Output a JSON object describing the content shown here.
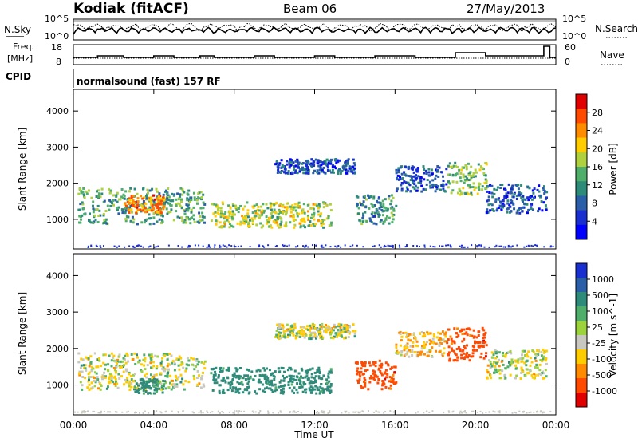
{
  "header": {
    "station": "Kodiak (fitACF)",
    "beam": "Beam 06",
    "date": "27/May/2013"
  },
  "top_panels": {
    "nsky_label": "N.Sky",
    "nsky_ticks": [
      "10^5",
      "10^0"
    ],
    "nsearch_label": "N.Search",
    "nsearch_ticks": [
      "10^5",
      "10^0"
    ],
    "freq_label_1": "Freq.",
    "freq_label_2": "[MHz]",
    "freq_ticks": [
      "18",
      "8"
    ],
    "nave_label": "Nave",
    "nave_ticks": [
      "60",
      "0"
    ],
    "cpid_label": "CPID",
    "cpid_text": "normalsound (fast) 157 RF"
  },
  "chart_data": [
    {
      "type": "heatmap",
      "name": "power",
      "ylabel": "Slant Range [km]",
      "xlabel": "Time UT",
      "xlim": [
        0,
        24
      ],
      "ylim": [
        180,
        4600
      ],
      "y_ticks": [
        "1000",
        "2000",
        "3000",
        "4000"
      ],
      "colorbar": {
        "label": "Power [dB]",
        "ticks": [
          "28",
          "24",
          "20",
          "16",
          "12",
          "8",
          "4"
        ],
        "colors": [
          "#e00000",
          "#ff4a00",
          "#ff8c00",
          "#ffcc00",
          "#b0d040",
          "#4fae6a",
          "#2e8b7a",
          "#2a5fa8",
          "#1a2fcf",
          "#0000ff"
        ]
      },
      "bands": [
        {
          "t0": 0.2,
          "t1": 6.5,
          "r0": 900,
          "r1": 1900,
          "level": 14
        },
        {
          "t0": 2.5,
          "t1": 4.5,
          "r0": 1200,
          "r1": 1700,
          "level": 24
        },
        {
          "t0": 6.8,
          "t1": 12.8,
          "r0": 800,
          "r1": 1500,
          "level": 18
        },
        {
          "t0": 10.0,
          "t1": 14.0,
          "r0": 2300,
          "r1": 2700,
          "level": 8
        },
        {
          "t0": 14.0,
          "t1": 16.0,
          "r0": 900,
          "r1": 1700,
          "level": 12
        },
        {
          "t0": 16.0,
          "t1": 18.5,
          "r0": 1800,
          "r1": 2500,
          "level": 8
        },
        {
          "t0": 18.5,
          "t1": 20.5,
          "r0": 1700,
          "r1": 2600,
          "level": 16
        },
        {
          "t0": 20.5,
          "t1": 23.5,
          "r0": 1200,
          "r1": 2000,
          "level": 8
        }
      ]
    },
    {
      "type": "heatmap",
      "name": "velocity",
      "ylabel": "Slant Range [km]",
      "xlabel": "Time UT",
      "xlim": [
        0,
        24
      ],
      "ylim": [
        180,
        4600
      ],
      "y_ticks": [
        "1000",
        "2000",
        "3000",
        "4000"
      ],
      "x_ticks": [
        "00:00",
        "04:00",
        "08:00",
        "12:00",
        "16:00",
        "20:00",
        "00:00"
      ],
      "colorbar": {
        "label": "Velocity [m s^-1]",
        "ticks": [
          "1000",
          "500",
          "100",
          "25",
          "-25",
          "-100",
          "-500",
          "-1000"
        ],
        "colors": [
          "#1a2fcf",
          "#2a5fa8",
          "#2e8b7a",
          "#4fae6a",
          "#9cd23c",
          "#c8c8c0",
          "#ffcc00",
          "#ff8c00",
          "#ff4a00",
          "#e00000"
        ]
      },
      "bands": [
        {
          "t0": 0.2,
          "t1": 6.5,
          "r0": 900,
          "r1": 1900,
          "vel": 0
        },
        {
          "t0": 3.0,
          "t1": 4.5,
          "r0": 800,
          "r1": 1200,
          "vel": 150
        },
        {
          "t0": 6.8,
          "t1": 12.8,
          "r0": 800,
          "r1": 1500,
          "vel": 200
        },
        {
          "t0": 10.0,
          "t1": 14.0,
          "r0": 2300,
          "r1": 2700,
          "vel": 0
        },
        {
          "t0": 14.0,
          "t1": 16.0,
          "r0": 900,
          "r1": 1700,
          "vel": -400
        },
        {
          "t0": 16.0,
          "t1": 18.5,
          "r0": 1800,
          "r1": 2500,
          "vel": -80
        },
        {
          "t0": 18.5,
          "t1": 20.5,
          "r0": 1700,
          "r1": 2600,
          "vel": -400
        },
        {
          "t0": 20.5,
          "t1": 23.5,
          "r0": 1200,
          "r1": 2000,
          "vel": 0
        }
      ]
    }
  ]
}
